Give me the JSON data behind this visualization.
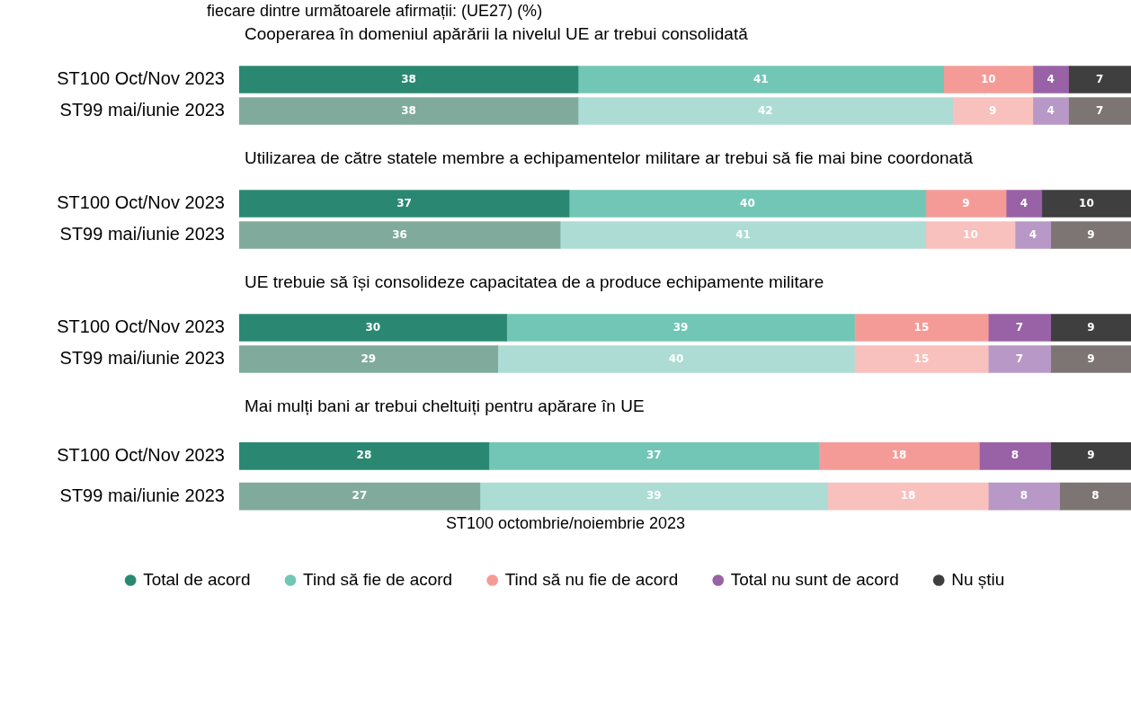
{
  "chart_data": [
    {
      "type": "bar",
      "orientation": "horizontal",
      "stacked": true,
      "data_labels": true,
      "title": "fiecare dintre următoarele afirmații: (UE27) (%)",
      "subtitle": "Cooperarea în domeniul apărării la nivelul UE ar trebui consolidată",
      "categories": [
        "ST100 Oct/Nov 2023",
        "ST99 mai/iunie 2023"
      ],
      "series": [
        {
          "colors": [
            "#2a8872",
            "#80aa9c"
          ],
          "values": [
            38,
            38
          ]
        },
        {
          "colors": [
            "#72c6b6",
            "#acdcd4"
          ],
          "values": [
            41,
            42
          ]
        },
        {
          "colors": [
            "#f59b97",
            "#f8c1bd"
          ],
          "values": [
            10,
            9
          ]
        },
        {
          "colors": [
            "#9a62a6",
            "#b898c6"
          ],
          "values": [
            4,
            4
          ]
        },
        {
          "colors": [
            "#3f3f3f",
            "#7d7474"
          ],
          "values": [
            7,
            7
          ]
        }
      ]
    },
    {
      "type": "bar",
      "orientation": "horizontal",
      "stacked": true,
      "data_labels": true,
      "title": "Utilizarea de către statele membre a echipamentelor militare ar trebui să fie mai bine coordonată",
      "categories": [
        "ST100 Oct/Nov 2023",
        "ST99 mai/iunie 2023"
      ],
      "series": [
        {
          "colors": [
            "#2a8872",
            "#80aa9c"
          ],
          "values": [
            37,
            36
          ]
        },
        {
          "colors": [
            "#72c6b6",
            "#acdcd4"
          ],
          "values": [
            40,
            41
          ]
        },
        {
          "colors": [
            "#f59b97",
            "#f8c1bd"
          ],
          "values": [
            9,
            10
          ]
        },
        {
          "colors": [
            "#9a62a6",
            "#b898c6"
          ],
          "values": [
            4,
            4
          ]
        },
        {
          "colors": [
            "#3f3f3f",
            "#7d7474"
          ],
          "values": [
            10,
            9
          ]
        }
      ]
    },
    {
      "type": "bar",
      "orientation": "horizontal",
      "stacked": true,
      "data_labels": true,
      "title": "UE trebuie să își consolideze capacitatea de a produce echipamente militare",
      "categories": [
        "ST100 Oct/Nov 2023",
        "ST99 mai/iunie 2023"
      ],
      "series": [
        {
          "colors": [
            "#2a8872",
            "#80aa9c"
          ],
          "values": [
            30,
            29
          ]
        },
        {
          "colors": [
            "#72c6b6",
            "#acdcd4"
          ],
          "values": [
            39,
            40
          ]
        },
        {
          "colors": [
            "#f59b97",
            "#f8c1bd"
          ],
          "values": [
            15,
            15
          ]
        },
        {
          "colors": [
            "#9a62a6",
            "#b898c6"
          ],
          "values": [
            7,
            7
          ]
        },
        {
          "colors": [
            "#3f3f3f",
            "#7d7474"
          ],
          "values": [
            9,
            9
          ]
        }
      ]
    },
    {
      "type": "bar",
      "orientation": "horizontal",
      "stacked": true,
      "data_labels": true,
      "legend": "bottom",
      "legend_title": "ST100 octombrie/noiembrie 2023",
      "title": "Mai mulți bani ar trebui cheltuiți pentru apărare în UE",
      "categories": [
        "ST100 Oct/Nov 2023",
        "ST99 mai/iunie 2023"
      ],
      "series": [
        {
          "name": "Total de acord",
          "colors": [
            "#2a8872",
            "#80aa9c"
          ],
          "values": [
            28,
            27
          ]
        },
        {
          "name": "Tind să fie de acord",
          "colors": [
            "#72c6b6",
            "#acdcd4"
          ],
          "values": [
            37,
            39
          ]
        },
        {
          "name": "Tind să nu fie de acord",
          "colors": [
            "#f59b97",
            "#f8c1bd"
          ],
          "values": [
            18,
            18
          ]
        },
        {
          "name": "Total nu sunt de acord",
          "colors": [
            "#9a62a6",
            "#b898c6"
          ],
          "values": [
            8,
            8
          ]
        },
        {
          "name": "Nu știu",
          "colors": [
            "#3f3f3f",
            "#7d7474"
          ],
          "values": [
            9,
            8
          ]
        }
      ]
    }
  ]
}
